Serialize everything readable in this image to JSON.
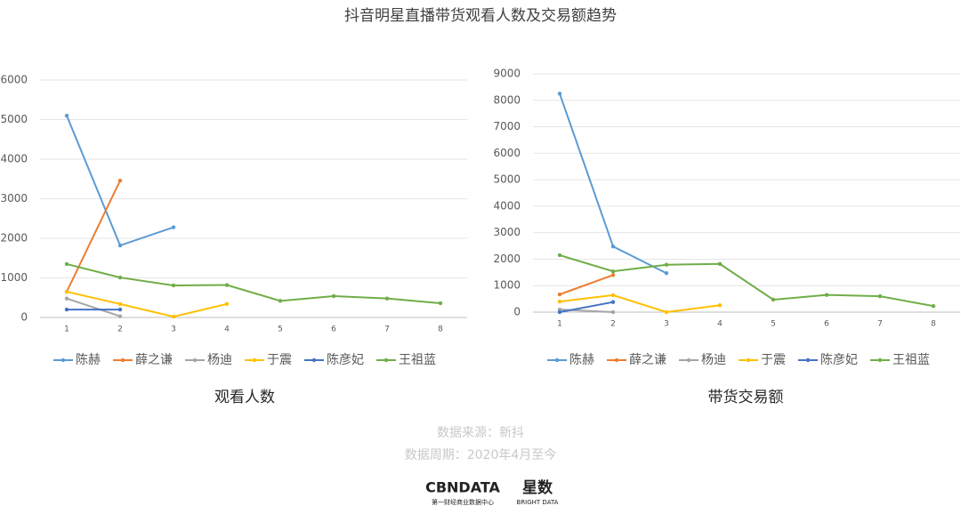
{
  "title": "抖音明星直播带货观看人数及交易额趋势",
  "chart_data": [
    {
      "type": "line",
      "title": "观看人数",
      "x": [
        1,
        2,
        3,
        4,
        5,
        6,
        7,
        8
      ],
      "xlim": [
        0.5,
        8.5
      ],
      "xticks": [
        1,
        2,
        3,
        4,
        5,
        6,
        7,
        8
      ],
      "ylim": [
        0,
        6000
      ],
      "yticks": [
        0,
        1000,
        2000,
        3000,
        4000,
        5000,
        6000
      ],
      "grid": true,
      "legend": "bottom",
      "series": [
        {
          "name": "陈赫",
          "color": "#5b9bd5",
          "values": [
            5100,
            1820,
            2280,
            null,
            null,
            null,
            null,
            null
          ]
        },
        {
          "name": "薛之谦",
          "color": "#ed7d31",
          "values": [
            650,
            3460,
            null,
            null,
            null,
            null,
            null,
            null
          ]
        },
        {
          "name": "杨迪",
          "color": "#a5a5a5",
          "values": [
            480,
            30,
            null,
            null,
            null,
            null,
            null,
            null
          ]
        },
        {
          "name": "于震",
          "color": "#ffc000",
          "values": [
            650,
            340,
            20,
            340,
            null,
            null,
            null,
            null
          ]
        },
        {
          "name": "陈彦妃",
          "color": "#4472c4",
          "values": [
            200,
            200,
            null,
            null,
            null,
            null,
            null,
            null
          ]
        },
        {
          "name": "王祖蓝",
          "color": "#70ad47",
          "values": [
            1350,
            1010,
            810,
            820,
            420,
            540,
            480,
            360
          ]
        }
      ]
    },
    {
      "type": "line",
      "title": "带货交易额",
      "x": [
        1,
        2,
        3,
        4,
        5,
        6,
        7,
        8
      ],
      "xlim": [
        0.5,
        8.5
      ],
      "xticks": [
        1,
        2,
        3,
        4,
        5,
        6,
        7,
        8
      ],
      "ylim": [
        0,
        9000
      ],
      "yticks": [
        0,
        1000,
        2000,
        3000,
        4000,
        5000,
        6000,
        7000,
        8000,
        9000
      ],
      "grid": true,
      "legend": "bottom",
      "series": [
        {
          "name": "陈赫",
          "color": "#5b9bd5",
          "values": [
            8250,
            2480,
            1470,
            null,
            null,
            null,
            null,
            null
          ]
        },
        {
          "name": "薛之谦",
          "color": "#ed7d31",
          "values": [
            670,
            1400,
            null,
            null,
            null,
            null,
            null,
            null
          ]
        },
        {
          "name": "杨迪",
          "color": "#a5a5a5",
          "values": [
            100,
            0,
            null,
            null,
            null,
            null,
            null,
            null
          ]
        },
        {
          "name": "于震",
          "color": "#ffc000",
          "values": [
            400,
            640,
            0,
            260,
            null,
            null,
            null,
            null
          ]
        },
        {
          "name": "陈彦妃",
          "color": "#4472c4",
          "values": [
            0,
            380,
            null,
            null,
            null,
            null,
            null,
            null
          ]
        },
        {
          "name": "王祖蓝",
          "color": "#70ad47",
          "values": [
            2150,
            1540,
            1790,
            1820,
            470,
            650,
            600,
            230
          ]
        }
      ]
    }
  ],
  "source": "数据来源：新抖",
  "period": "数据周期：2020年4月至今",
  "logo": {
    "brand": "CBNDATA",
    "brand_sub": "第一财经商业数据中心",
    "partner": "星数",
    "partner_sub": "BRIGHT DATA"
  }
}
